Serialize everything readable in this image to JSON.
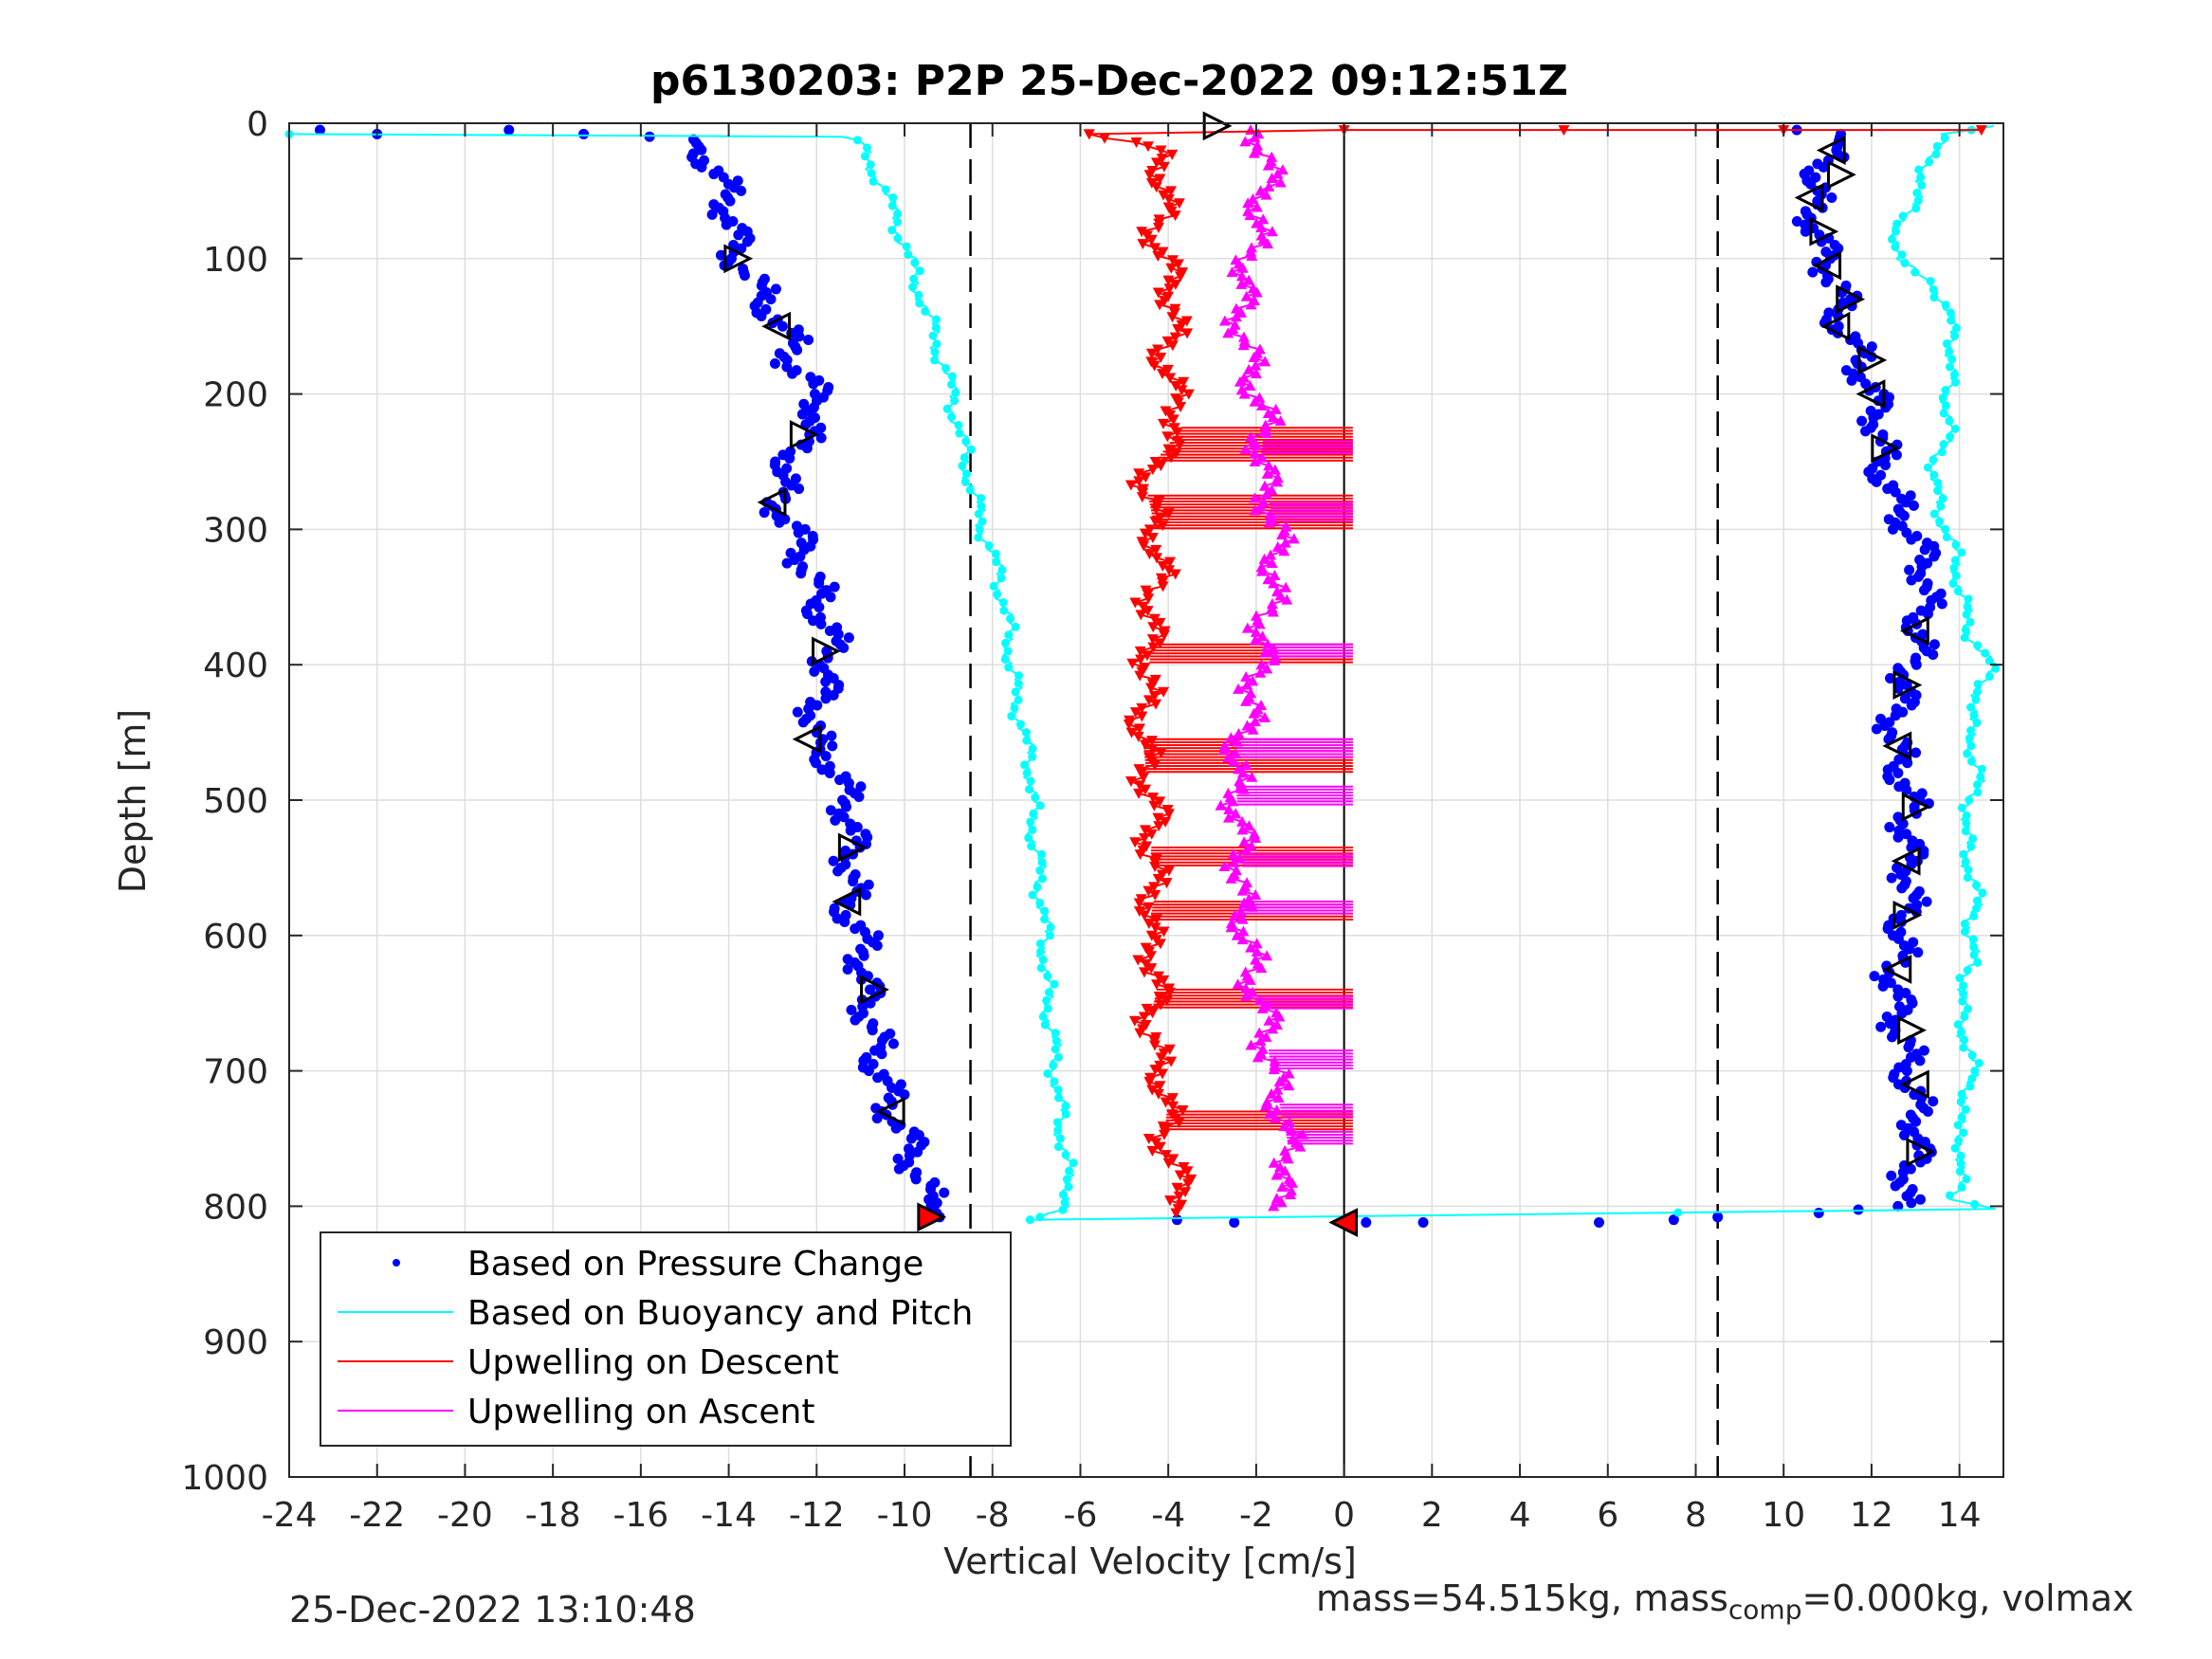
{
  "chart_data": {
    "type": "scatter",
    "title": "p6130203: P2P 25-Dec-2022 09:12:51Z",
    "xlabel": "Vertical Velocity [cm/s]",
    "ylabel": "Depth [m]",
    "xlim": [
      -24,
      15
    ],
    "ylim": [
      0,
      1000
    ],
    "y_reversed": true,
    "grid": true,
    "x_ticks": [
      -24,
      -22,
      -20,
      -18,
      -16,
      -14,
      -12,
      -10,
      -8,
      -6,
      -4,
      -2,
      0,
      2,
      4,
      6,
      8,
      10,
      12,
      14
    ],
    "y_ticks": [
      0,
      100,
      200,
      300,
      400,
      500,
      600,
      700,
      800,
      900,
      1000
    ],
    "reference_lines": {
      "dashed_x": [
        -8.5,
        8.5
      ],
      "solid_x": [
        0
      ]
    },
    "legend": {
      "placement": "bottom-left",
      "entries": [
        {
          "label": "Based on Pressure Change",
          "color": "#0000ff",
          "style": "dot"
        },
        {
          "label": "Based on Buoyancy and Pitch",
          "color": "#00ffff",
          "style": "line"
        },
        {
          "label": "Upwelling on Descent",
          "color": "#ff0000",
          "style": "line"
        },
        {
          "label": "Upwelling on Ascent",
          "color": "#ff00ff",
          "style": "line"
        }
      ]
    },
    "series": [
      {
        "name": "Based on Pressure Change",
        "color": "#0000ff",
        "branch": "descent",
        "points": [
          [
            -23.3,
            5
          ],
          [
            -22,
            8
          ],
          [
            -19,
            5
          ],
          [
            -17.3,
            8
          ],
          [
            -15.8,
            10
          ],
          [
            -14.8,
            12
          ],
          [
            -14.5,
            25
          ],
          [
            -14.2,
            40
          ],
          [
            -14.0,
            60
          ],
          [
            -13.9,
            80
          ],
          [
            -13.8,
            100
          ],
          [
            -13.4,
            120
          ],
          [
            -12.9,
            145
          ],
          [
            -12.6,
            160
          ],
          [
            -12.5,
            180
          ],
          [
            -12.1,
            195
          ],
          [
            -11.9,
            215
          ],
          [
            -12.3,
            230
          ],
          [
            -12.5,
            245
          ],
          [
            -12.8,
            265
          ],
          [
            -12.9,
            280
          ],
          [
            -12.5,
            300
          ],
          [
            -12.3,
            320
          ],
          [
            -12.0,
            345
          ],
          [
            -11.8,
            370
          ],
          [
            -11.6,
            390
          ],
          [
            -11.8,
            410
          ],
          [
            -12.0,
            435
          ],
          [
            -12.1,
            455
          ],
          [
            -11.6,
            475
          ],
          [
            -11.3,
            500
          ],
          [
            -11.2,
            520
          ],
          [
            -11.2,
            540
          ],
          [
            -11.2,
            560
          ],
          [
            -11.3,
            580
          ],
          [
            -11.0,
            600
          ],
          [
            -10.9,
            620
          ],
          [
            -10.9,
            645
          ],
          [
            -10.7,
            670
          ],
          [
            -10.6,
            695
          ],
          [
            -10.4,
            715
          ],
          [
            -10.3,
            730
          ],
          [
            -10.0,
            745
          ],
          [
            -9.8,
            765
          ],
          [
            -9.6,
            785
          ],
          [
            -9.4,
            800
          ],
          [
            -9.2,
            808
          ]
        ]
      },
      {
        "name": "Based on Pressure Change",
        "color": "#0000ff",
        "branch": "ascent",
        "points": [
          [
            -3.8,
            810
          ],
          [
            -2.5,
            812
          ],
          [
            0.5,
            812
          ],
          [
            1.8,
            812
          ],
          [
            5.8,
            812
          ],
          [
            7.5,
            810
          ],
          [
            8.5,
            808
          ],
          [
            10.8,
            805
          ],
          [
            12.6,
            800
          ],
          [
            12.8,
            790
          ],
          [
            13.0,
            760
          ],
          [
            13.1,
            740
          ],
          [
            12.9,
            715
          ],
          [
            12.8,
            690
          ],
          [
            12.6,
            660
          ],
          [
            12.5,
            630
          ],
          [
            12.7,
            600
          ],
          [
            12.8,
            580
          ],
          [
            12.9,
            555
          ],
          [
            12.8,
            530
          ],
          [
            12.9,
            505
          ],
          [
            12.7,
            480
          ],
          [
            12.5,
            455
          ],
          [
            12.6,
            430
          ],
          [
            12.9,
            405
          ],
          [
            13.1,
            380
          ],
          [
            13.2,
            355
          ],
          [
            13.3,
            335
          ],
          [
            13.1,
            315
          ],
          [
            12.8,
            295
          ],
          [
            12.4,
            270
          ],
          [
            12.2,
            245
          ],
          [
            12.2,
            220
          ],
          [
            12.0,
            200
          ],
          [
            11.8,
            180
          ],
          [
            11.5,
            160
          ],
          [
            11.2,
            140
          ],
          [
            11.3,
            120
          ],
          [
            10.9,
            100
          ],
          [
            10.8,
            80
          ],
          [
            10.6,
            60
          ],
          [
            10.8,
            40
          ],
          [
            11.2,
            20
          ],
          [
            11.3,
            8
          ],
          [
            10.3,
            5
          ]
        ]
      },
      {
        "name": "Based on Buoyancy and Pitch",
        "color": "#00ffff",
        "branch": "descent",
        "points": [
          [
            -24,
            8
          ],
          [
            -11.5,
            10
          ],
          [
            -11.0,
            15
          ],
          [
            -10.6,
            40
          ],
          [
            -10.2,
            70
          ],
          [
            -9.9,
            100
          ],
          [
            -9.6,
            130
          ],
          [
            -9.3,
            160
          ],
          [
            -9.0,
            190
          ],
          [
            -8.8,
            220
          ],
          [
            -8.6,
            250
          ],
          [
            -8.4,
            280
          ],
          [
            -8.2,
            300
          ],
          [
            -7.9,
            330
          ],
          [
            -7.7,
            360
          ],
          [
            -7.6,
            390
          ],
          [
            -7.5,
            420
          ],
          [
            -7.3,
            450
          ],
          [
            -7.1,
            480
          ],
          [
            -7.1,
            510
          ],
          [
            -7.0,
            540
          ],
          [
            -6.9,
            570
          ],
          [
            -6.8,
            600
          ],
          [
            -6.8,
            630
          ],
          [
            -6.7,
            660
          ],
          [
            -6.6,
            690
          ],
          [
            -6.5,
            720
          ],
          [
            -6.4,
            750
          ],
          [
            -6.3,
            780
          ],
          [
            -6.2,
            800
          ],
          [
            -7.0,
            808
          ]
        ]
      },
      {
        "name": "Based on Buoyancy and Pitch",
        "color": "#00ffff",
        "branch": "ascent",
        "points": [
          [
            -7.0,
            810
          ],
          [
            15,
            802
          ],
          [
            13.8,
            795
          ],
          [
            14.0,
            780
          ],
          [
            14.1,
            760
          ],
          [
            13.9,
            740
          ],
          [
            14.2,
            720
          ],
          [
            14.3,
            700
          ],
          [
            14.2,
            680
          ],
          [
            14.0,
            660
          ],
          [
            14.1,
            640
          ],
          [
            14.3,
            620
          ],
          [
            14.2,
            600
          ],
          [
            14.4,
            580
          ],
          [
            14.3,
            560
          ],
          [
            14.2,
            540
          ],
          [
            14.1,
            520
          ],
          [
            14.3,
            500
          ],
          [
            14.4,
            480
          ],
          [
            14.3,
            460
          ],
          [
            14.2,
            440
          ],
          [
            14.5,
            420
          ],
          [
            14.7,
            400
          ],
          [
            14.3,
            380
          ],
          [
            14.1,
            360
          ],
          [
            14.0,
            340
          ],
          [
            13.9,
            320
          ],
          [
            13.7,
            300
          ],
          [
            13.5,
            280
          ],
          [
            13.4,
            260
          ],
          [
            13.6,
            240
          ],
          [
            13.8,
            220
          ],
          [
            13.7,
            200
          ],
          [
            13.8,
            180
          ],
          [
            13.9,
            160
          ],
          [
            13.7,
            140
          ],
          [
            13.5,
            120
          ],
          [
            13.0,
            110
          ],
          [
            12.5,
            100
          ],
          [
            12.6,
            80
          ],
          [
            12.9,
            60
          ],
          [
            13.2,
            40
          ],
          [
            13.4,
            20
          ],
          [
            13.6,
            8
          ],
          [
            14.8,
            2
          ]
        ]
      },
      {
        "name": "Upwelling on Descent",
        "color": "#ff0000",
        "points": [
          [
            -5.8,
            8
          ],
          [
            -4.3,
            20
          ],
          [
            -4.0,
            50
          ],
          [
            -4.3,
            80
          ],
          [
            -4.0,
            110
          ],
          [
            -3.8,
            140
          ],
          [
            -4.1,
            170
          ],
          [
            -3.9,
            200
          ],
          [
            -3.7,
            225
          ],
          [
            -4.3,
            250
          ],
          [
            -4.5,
            270
          ],
          [
            -4.3,
            300
          ],
          [
            -4.2,
            330
          ],
          [
            -4.4,
            360
          ],
          [
            -4.4,
            390
          ],
          [
            -4.5,
            420
          ],
          [
            -4.6,
            450
          ],
          [
            -4.5,
            480
          ],
          [
            -4.3,
            510
          ],
          [
            -4.4,
            540
          ],
          [
            -4.3,
            570
          ],
          [
            -4.5,
            600
          ],
          [
            -4.2,
            630
          ],
          [
            -4.4,
            660
          ],
          [
            -4.3,
            690
          ],
          [
            -4.0,
            720
          ],
          [
            -4.1,
            750
          ],
          [
            -3.8,
            780
          ],
          [
            -3.5,
            805
          ]
        ]
      },
      {
        "name": "Upwelling on Ascent",
        "color": "#ff00ff",
        "points": [
          [
            -1.8,
            800
          ],
          [
            -1.2,
            780
          ],
          [
            -1.3,
            750
          ],
          [
            -1.5,
            720
          ],
          [
            -1.7,
            690
          ],
          [
            -1.8,
            660
          ],
          [
            -2.1,
            630
          ],
          [
            -2.2,
            600
          ],
          [
            -2.4,
            570
          ],
          [
            -2.3,
            540
          ],
          [
            -2.4,
            510
          ],
          [
            -2.5,
            480
          ],
          [
            -2.4,
            460
          ],
          [
            -2.1,
            430
          ],
          [
            -1.9,
            400
          ],
          [
            -1.8,
            370
          ],
          [
            -1.6,
            340
          ],
          [
            -1.5,
            310
          ],
          [
            -1.7,
            280
          ],
          [
            -1.9,
            250
          ],
          [
            -1.8,
            220
          ],
          [
            -2.0,
            200
          ],
          [
            -2.2,
            170
          ],
          [
            -2.4,
            140
          ],
          [
            -2.2,
            110
          ],
          [
            -2.0,
            80
          ],
          [
            -1.8,
            50
          ],
          [
            -1.7,
            25
          ],
          [
            -2.0,
            5
          ]
        ]
      },
      {
        "name": "Upwelling on Descent",
        "color": "#ff0000",
        "style": "return",
        "points": [
          [
            14.5,
            5
          ],
          [
            10,
            5
          ],
          [
            5,
            5
          ],
          [
            0,
            5
          ],
          [
            -5.8,
            8
          ]
        ]
      }
    ],
    "hatch_bands": {
      "descent_red": [
        [
          225,
          250
        ],
        [
          275,
          300
        ],
        [
          385,
          400
        ],
        [
          455,
          480
        ],
        [
          535,
          550
        ],
        [
          575,
          590
        ],
        [
          640,
          655
        ],
        [
          730,
          745
        ]
      ],
      "ascent_magenta": [
        [
          235,
          245
        ],
        [
          280,
          295
        ],
        [
          385,
          395
        ],
        [
          455,
          470
        ],
        [
          490,
          505
        ],
        [
          540,
          550
        ],
        [
          575,
          585
        ],
        [
          645,
          655
        ],
        [
          685,
          700
        ],
        [
          725,
          735
        ],
        [
          745,
          755
        ]
      ]
    },
    "triangle_markers": {
      "descent": [
        [
          -13.8,
          100
        ],
        [
          -12.9,
          150
        ],
        [
          -12.3,
          230
        ],
        [
          -13.0,
          280
        ],
        [
          -11.8,
          390
        ],
        [
          -12.2,
          455
        ],
        [
          -11.2,
          535
        ],
        [
          -11.3,
          575
        ],
        [
          -10.7,
          640
        ],
        [
          -10.3,
          730
        ],
        [
          -9.4,
          808
        ]
      ],
      "ascent": [
        [
          -2.9,
          2
        ],
        [
          11.1,
          20
        ],
        [
          11.3,
          38
        ],
        [
          10.6,
          55
        ],
        [
          10.9,
          80
        ],
        [
          11.0,
          105
        ],
        [
          11.5,
          130
        ],
        [
          11.2,
          150
        ],
        [
          12.0,
          175
        ],
        [
          12.0,
          200
        ],
        [
          12.3,
          240
        ],
        [
          13.0,
          375
        ],
        [
          12.8,
          415
        ],
        [
          12.6,
          460
        ],
        [
          13.0,
          505
        ],
        [
          12.8,
          545
        ],
        [
          12.8,
          585
        ],
        [
          12.6,
          625
        ],
        [
          12.9,
          670
        ],
        [
          13.0,
          710
        ],
        [
          13.1,
          760
        ],
        [
          0,
          812
        ]
      ]
    }
  },
  "footer": {
    "timestamp": "25-Dec-2022 13:10:48",
    "mass_prefix": "mass=54.515kg, mass",
    "mass_sub": "comp",
    "mass_suffix": "=0.000kg, volmax"
  }
}
